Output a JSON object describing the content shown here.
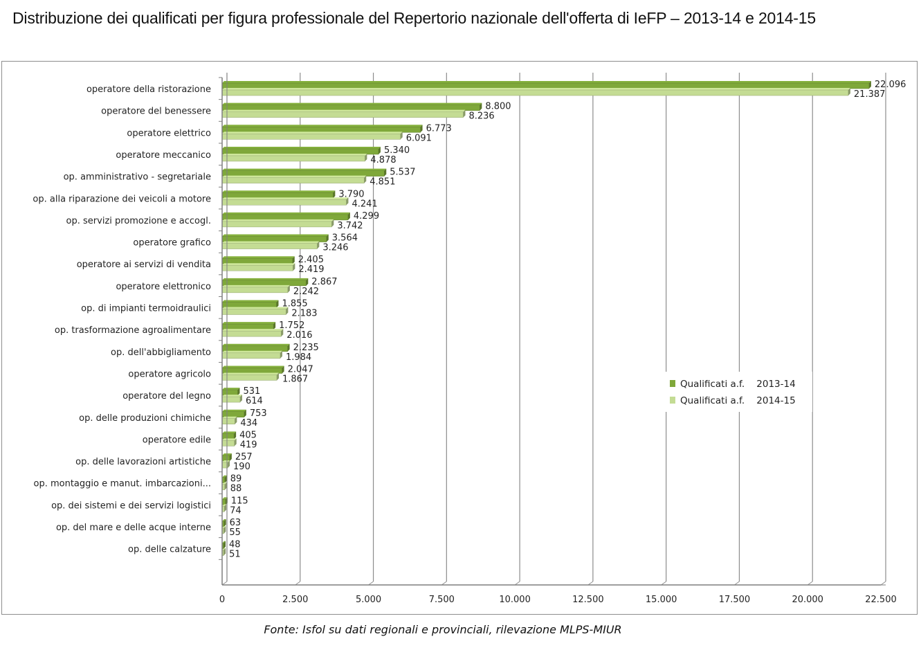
{
  "title": "Distribuzione dei qualificati per figura professionale del Repertorio nazionale dell'offerta di IeFP – 2013-14 e 2014-15",
  "source": "Fonte: Isfol su dati regionali e provinciali, rilevazione MLPS-MIUR",
  "colors": {
    "series1": "#7fa83a",
    "series2": "#c4dc94",
    "grid": "#8c8c8c",
    "axis": "#7f7f7f"
  },
  "chart_data": {
    "type": "bar",
    "orientation": "horizontal",
    "title": "Distribuzione dei qualificati per figura professionale del Repertorio nazionale dell'offerta di IeFP – 2013-14 e 2014-15",
    "xlabel": "",
    "ylabel": "",
    "xlim": [
      0,
      22500
    ],
    "grid": true,
    "legend_position": "right",
    "x_ticks": [
      0,
      2500,
      5000,
      7500,
      10000,
      12500,
      15000,
      17500,
      20000,
      22500
    ],
    "x_tick_labels": [
      "0",
      "2.500",
      "5.000",
      "7.500",
      "10.000",
      "12.500",
      "15.000",
      "17.500",
      "20.000",
      "22.500"
    ],
    "categories": [
      "operatore della ristorazione",
      "operatore del benessere",
      "operatore elettrico",
      "operatore meccanico",
      "op. amministrativo - segretariale",
      "op. alla riparazione dei veicoli a motore",
      "op. servizi promozione e accogl.",
      "operatore grafico",
      "operatore ai servizi di vendita",
      "operatore elettronico",
      "op. di impianti termoidraulici",
      "op. trasformazione agroalimentare",
      "op. dell'abbigliamento",
      "operatore agricolo",
      "operatore del legno",
      "op. delle produzioni chimiche",
      "operatore edile",
      "op. delle lavorazioni artistiche",
      "op. montaggio e manut. imbarcazioni...",
      "op. dei sistemi e dei servizi logistici",
      "op. del mare e delle acque interne",
      "op. delle calzature"
    ],
    "series": [
      {
        "name": "Qualificati a.f.    2013-14",
        "values": [
          22096,
          8800,
          6773,
          5340,
          5537,
          3790,
          4299,
          3564,
          2405,
          2867,
          1855,
          1752,
          2235,
          2047,
          531,
          753,
          405,
          257,
          89,
          115,
          63,
          48
        ],
        "labels": [
          "22.096",
          "8.800",
          "6.773",
          "5.340",
          "5.537",
          "3.790",
          "4.299",
          "3.564",
          "2.405",
          "2.867",
          "1.855",
          "1.752",
          "2.235",
          "2.047",
          "531",
          "753",
          "405",
          "257",
          "89",
          "115",
          "63",
          "48"
        ]
      },
      {
        "name": "Qualificati a.f.    2014-15",
        "values": [
          21387,
          8236,
          6091,
          4878,
          4851,
          4241,
          3742,
          3246,
          2419,
          2242,
          2183,
          2016,
          1984,
          1867,
          614,
          434,
          419,
          190,
          88,
          74,
          55,
          51
        ],
        "labels": [
          "21.387",
          "8.236",
          "6.091",
          "4.878",
          "4.851",
          "4.241",
          "3.742",
          "3.246",
          "2.419",
          "2.242",
          "2.183",
          "2.016",
          "1.984",
          "1.867",
          "614",
          "434",
          "419",
          "190",
          "88",
          "74",
          "55",
          "51"
        ]
      }
    ]
  }
}
